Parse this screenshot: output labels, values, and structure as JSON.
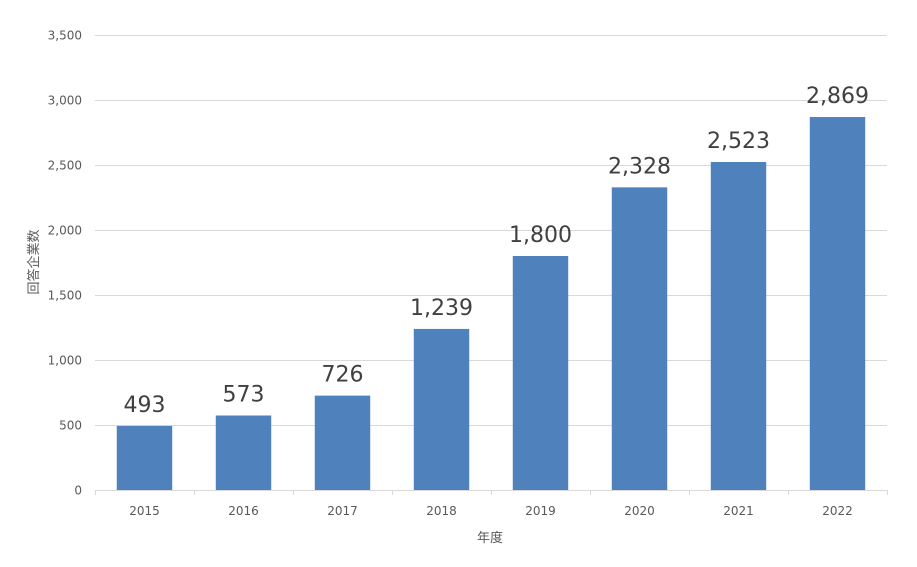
{
  "chart_data": {
    "type": "bar",
    "categories": [
      "2015",
      "2016",
      "2017",
      "2018",
      "2019",
      "2020",
      "2021",
      "2022"
    ],
    "values": [
      493,
      573,
      726,
      1239,
      1800,
      2328,
      2523,
      2869
    ],
    "data_labels": [
      "493",
      "573",
      "726",
      "1,239",
      "1,800",
      "2,328",
      "2,523",
      "2,869"
    ],
    "title": "",
    "xlabel": "年度",
    "ylabel": "回答企業数",
    "ylim": [
      0,
      3500
    ],
    "yticks": [
      0,
      500,
      1000,
      1500,
      2000,
      2500,
      3000,
      3500
    ],
    "ytick_labels": [
      "0",
      "500",
      "1,000",
      "1,500",
      "2,000",
      "2,500",
      "3,000",
      "3,500"
    ],
    "grid": true,
    "legend": "none",
    "colors": {
      "bar": "#4f81bd",
      "grid": "#d9d9d9",
      "axis": "#d9d9d9"
    }
  }
}
